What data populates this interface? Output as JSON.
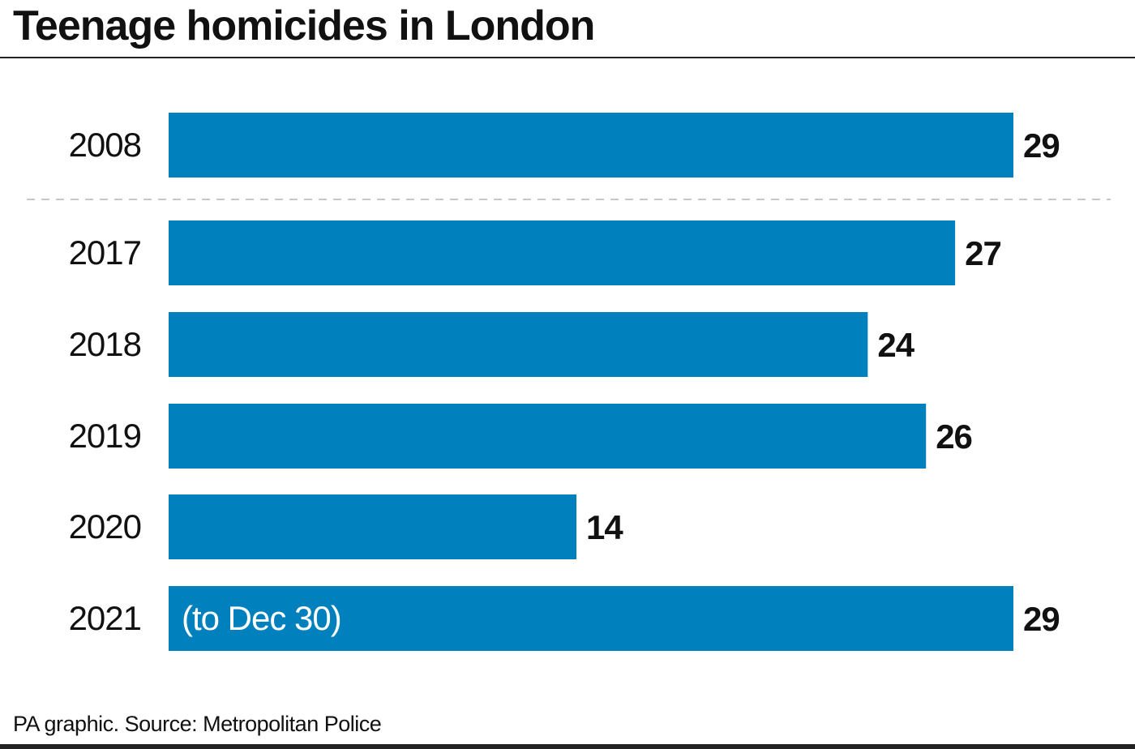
{
  "title": "Teenage homicides in London",
  "source": "PA graphic. Source: Metropolitan Police",
  "colors": {
    "bar": "#0081BD",
    "text": "#111111",
    "divider": "#c8c8c8"
  },
  "chart_data": {
    "type": "bar",
    "orientation": "horizontal",
    "title": "Teenage homicides in London",
    "categories": [
      "2008",
      "2017",
      "2018",
      "2019",
      "2020",
      "2021"
    ],
    "values": [
      29,
      27,
      24,
      26,
      14,
      29
    ],
    "annotations": [
      {
        "category": "2021",
        "text": "(to Dec 30)"
      }
    ],
    "xlabel": "",
    "ylabel": "",
    "xlim": [
      0,
      29
    ],
    "grid": false,
    "separator_after": "2008"
  }
}
